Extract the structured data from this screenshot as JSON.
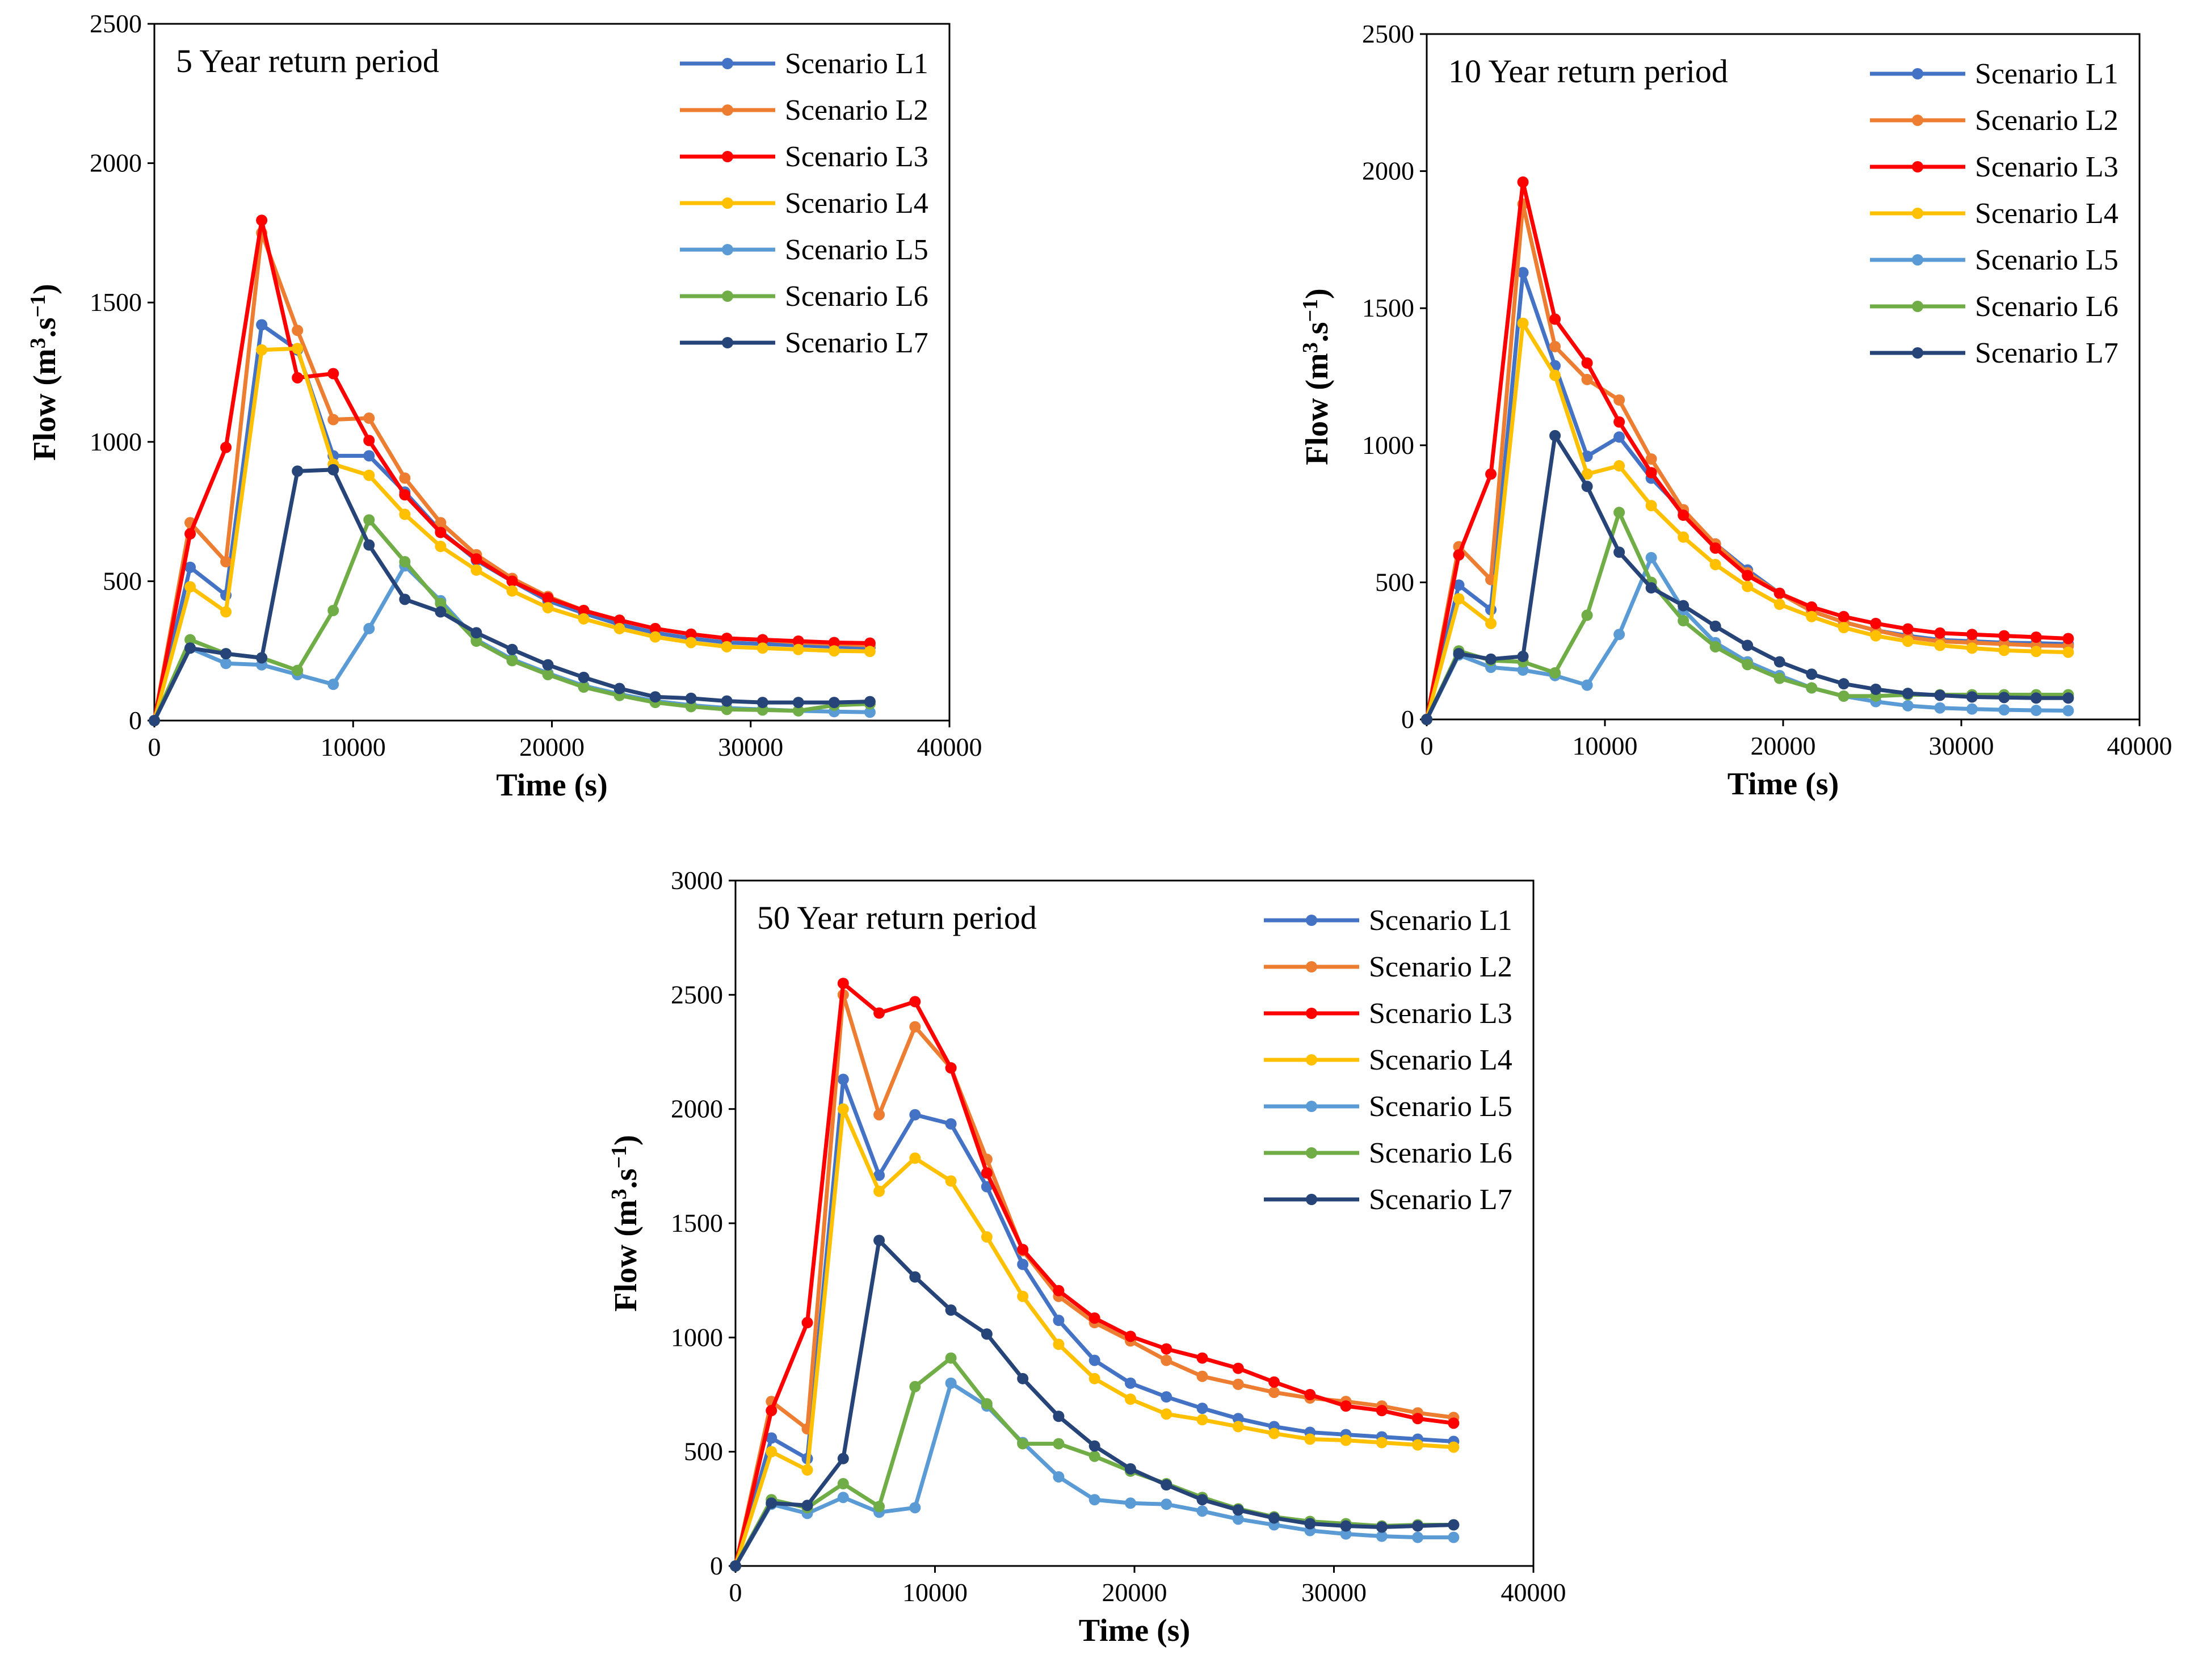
{
  "figure": {
    "x_axis_title": "Time (s)",
    "y_axis_title": {
      "main": "Flow (m",
      "sup1": "3",
      "mid": ".s",
      "sup2": "−1",
      "end": ")"
    }
  },
  "chart_data": [
    {
      "type": "line",
      "title": "5 Year return period",
      "xlabel": "Time (s)",
      "ylabel": "Flow (m3.s−1)",
      "xlim": [
        0,
        40000
      ],
      "ylim": [
        0,
        2500
      ],
      "xticks": [
        0,
        10000,
        20000,
        30000,
        40000
      ],
      "yticks": [
        0,
        500,
        1000,
        1500,
        2000,
        2500
      ],
      "legend_position": "top-right",
      "x": [
        0,
        1800,
        3600,
        5400,
        7200,
        9000,
        10800,
        12600,
        14400,
        16200,
        18000,
        19800,
        21600,
        23400,
        25200,
        27000,
        28800,
        30600,
        32400,
        34200,
        36000
      ],
      "series": [
        {
          "name": "Scenario L1",
          "color": "#4472C4",
          "values": [
            0,
            550,
            450,
            1420,
            1330,
            950,
            950,
            820,
            680,
            575,
            500,
            430,
            385,
            345,
            315,
            295,
            280,
            275,
            270,
            265,
            262
          ]
        },
        {
          "name": "Scenario L2",
          "color": "#ED7D31",
          "values": [
            0,
            710,
            570,
            1750,
            1400,
            1080,
            1085,
            870,
            710,
            595,
            510,
            445,
            395,
            360,
            330,
            310,
            295,
            290,
            280,
            275,
            270
          ]
        },
        {
          "name": "Scenario L3",
          "color": "#FF0000",
          "values": [
            0,
            670,
            980,
            1795,
            1230,
            1245,
            1005,
            810,
            675,
            580,
            500,
            440,
            395,
            360,
            330,
            310,
            295,
            290,
            285,
            280,
            278
          ]
        },
        {
          "name": "Scenario L4",
          "color": "#FFC000",
          "values": [
            0,
            480,
            390,
            1330,
            1335,
            920,
            880,
            740,
            625,
            540,
            465,
            405,
            365,
            330,
            300,
            280,
            265,
            260,
            255,
            250,
            248
          ]
        },
        {
          "name": "Scenario L5",
          "color": "#5B9BD5",
          "values": [
            0,
            260,
            205,
            200,
            165,
            130,
            330,
            555,
            430,
            290,
            220,
            170,
            125,
            95,
            70,
            55,
            45,
            40,
            35,
            32,
            30
          ]
        },
        {
          "name": "Scenario L6",
          "color": "#70AD47",
          "values": [
            0,
            290,
            240,
            225,
            180,
            395,
            720,
            570,
            420,
            285,
            215,
            165,
            120,
            90,
            65,
            50,
            40,
            38,
            35,
            55,
            60
          ]
        },
        {
          "name": "Scenario L7",
          "color": "#264478",
          "values": [
            0,
            260,
            240,
            225,
            895,
            900,
            630,
            435,
            390,
            315,
            255,
            200,
            155,
            115,
            85,
            80,
            70,
            65,
            65,
            65,
            68
          ]
        }
      ]
    },
    {
      "type": "line",
      "title": "10 Year return period",
      "xlabel": "Time (s)",
      "ylabel": "Flow (m3.s−1)",
      "xlim": [
        0,
        40000
      ],
      "ylim": [
        0,
        2500
      ],
      "xticks": [
        0,
        10000,
        20000,
        30000,
        40000
      ],
      "yticks": [
        0,
        500,
        1000,
        1500,
        2000,
        2500
      ],
      "legend_position": "top-right",
      "x": [
        0,
        1800,
        3600,
        5400,
        7200,
        9000,
        10800,
        12600,
        14400,
        16200,
        18000,
        19800,
        21600,
        23400,
        25200,
        27000,
        28800,
        30600,
        32400,
        34200,
        36000
      ],
      "series": [
        {
          "name": "Scenario L1",
          "color": "#4472C4",
          "values": [
            0,
            490,
            400,
            1630,
            1290,
            960,
            1030,
            880,
            760,
            640,
            545,
            460,
            395,
            355,
            325,
            305,
            290,
            285,
            280,
            278,
            275
          ]
        },
        {
          "name": "Scenario L2",
          "color": "#ED7D31",
          "values": [
            0,
            630,
            510,
            1880,
            1360,
            1240,
            1165,
            950,
            765,
            640,
            535,
            460,
            395,
            355,
            325,
            300,
            285,
            280,
            275,
            270,
            268
          ]
        },
        {
          "name": "Scenario L3",
          "color": "#FF0000",
          "values": [
            0,
            600,
            895,
            1960,
            1460,
            1300,
            1085,
            900,
            745,
            625,
            525,
            460,
            410,
            375,
            350,
            330,
            315,
            310,
            305,
            300,
            295
          ]
        },
        {
          "name": "Scenario L4",
          "color": "#FFC000",
          "values": [
            0,
            440,
            350,
            1445,
            1255,
            895,
            925,
            780,
            665,
            565,
            485,
            420,
            375,
            335,
            305,
            285,
            270,
            260,
            252,
            248,
            245
          ]
        },
        {
          "name": "Scenario L5",
          "color": "#5B9BD5",
          "values": [
            0,
            235,
            190,
            180,
            160,
            125,
            310,
            590,
            400,
            280,
            210,
            160,
            115,
            85,
            65,
            50,
            42,
            38,
            35,
            33,
            32
          ]
        },
        {
          "name": "Scenario L6",
          "color": "#70AD47",
          "values": [
            0,
            250,
            215,
            210,
            170,
            380,
            755,
            500,
            360,
            265,
            200,
            150,
            115,
            85,
            85,
            90,
            90,
            90,
            90,
            90,
            90
          ]
        },
        {
          "name": "Scenario L7",
          "color": "#264478",
          "values": [
            0,
            240,
            220,
            230,
            1035,
            850,
            610,
            480,
            415,
            340,
            270,
            210,
            165,
            130,
            110,
            95,
            88,
            82,
            80,
            78,
            78
          ]
        }
      ]
    },
    {
      "type": "line",
      "title": "50 Year return period",
      "xlabel": "Time (s)",
      "ylabel": "Flow (m3.s−1)",
      "xlim": [
        0,
        40000
      ],
      "ylim": [
        0,
        3000
      ],
      "xticks": [
        0,
        10000,
        20000,
        30000,
        40000
      ],
      "yticks": [
        0,
        500,
        1000,
        1500,
        2000,
        2500,
        3000
      ],
      "legend_position": "top-right",
      "x": [
        0,
        1800,
        3600,
        5400,
        7200,
        9000,
        10800,
        12600,
        14400,
        16200,
        18000,
        19800,
        21600,
        23400,
        25200,
        27000,
        28800,
        30600,
        32400,
        34200,
        36000
      ],
      "series": [
        {
          "name": "Scenario L1",
          "color": "#4472C4",
          "values": [
            0,
            560,
            470,
            2130,
            1710,
            1975,
            1935,
            1660,
            1320,
            1075,
            900,
            800,
            740,
            690,
            645,
            610,
            585,
            575,
            565,
            555,
            545
          ]
        },
        {
          "name": "Scenario L2",
          "color": "#ED7D31",
          "values": [
            0,
            720,
            600,
            2500,
            1975,
            2360,
            2180,
            1780,
            1380,
            1180,
            1065,
            985,
            900,
            830,
            795,
            760,
            735,
            720,
            700,
            670,
            650
          ]
        },
        {
          "name": "Scenario L3",
          "color": "#FF0000",
          "values": [
            0,
            680,
            1065,
            2550,
            2420,
            2470,
            2180,
            1720,
            1385,
            1205,
            1085,
            1005,
            950,
            910,
            865,
            805,
            750,
            700,
            680,
            645,
            625
          ]
        },
        {
          "name": "Scenario L4",
          "color": "#FFC000",
          "values": [
            0,
            500,
            420,
            2000,
            1640,
            1785,
            1685,
            1440,
            1180,
            970,
            820,
            730,
            665,
            640,
            610,
            580,
            555,
            550,
            540,
            530,
            520
          ]
        },
        {
          "name": "Scenario L5",
          "color": "#5B9BD5",
          "values": [
            0,
            270,
            230,
            300,
            235,
            255,
            800,
            700,
            540,
            390,
            290,
            275,
            270,
            240,
            205,
            180,
            155,
            140,
            130,
            125,
            125
          ]
        },
        {
          "name": "Scenario L6",
          "color": "#70AD47",
          "values": [
            0,
            290,
            255,
            360,
            260,
            785,
            910,
            710,
            535,
            535,
            480,
            415,
            360,
            300,
            250,
            215,
            195,
            185,
            175,
            180,
            180
          ]
        },
        {
          "name": "Scenario L7",
          "color": "#264478",
          "values": [
            0,
            275,
            265,
            470,
            1425,
            1265,
            1120,
            1015,
            820,
            655,
            525,
            425,
            355,
            290,
            245,
            210,
            185,
            175,
            170,
            175,
            180
          ]
        }
      ]
    }
  ]
}
